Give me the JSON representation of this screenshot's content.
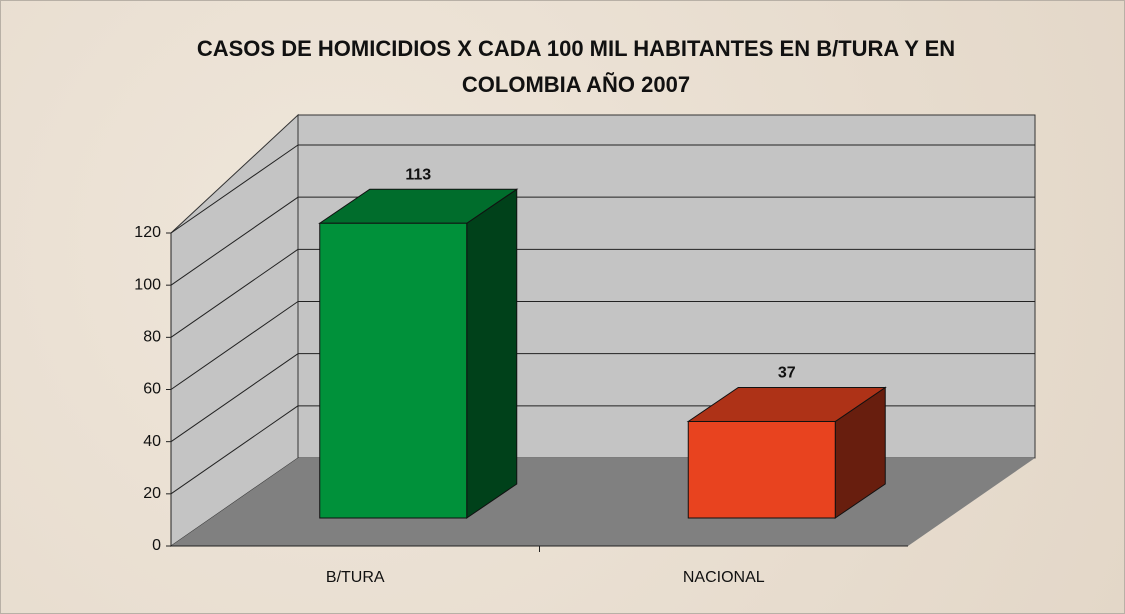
{
  "chart_data": {
    "type": "bar3d",
    "title": "CASOS DE HOMICIDIOS X CADA 100 MIL HABITANTES EN B/TURA Y EN COLOMBIA AÑO 2007",
    "categories": [
      "B/TURA",
      "NACIONAL"
    ],
    "values": [
      113,
      37
    ],
    "colors": [
      "#00913a",
      "#e8431f"
    ],
    "ylim": [
      0,
      120
    ],
    "yticks": [
      0,
      20,
      40,
      60,
      80,
      100,
      120
    ],
    "grid": true
  }
}
